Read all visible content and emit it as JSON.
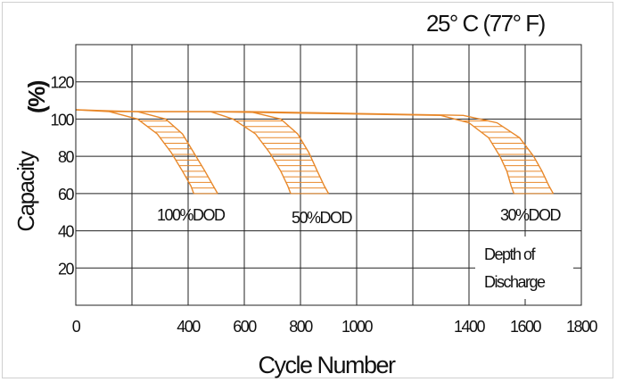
{
  "chart_data": {
    "type": "line",
    "title": "25° C (77° F)",
    "xlabel": "Cycle Number",
    "ylabel_left": "Capacity",
    "ylabel_right": "(%)",
    "xlim": [
      0,
      1800
    ],
    "ylim": [
      0,
      140
    ],
    "x_ticks": [
      0,
      200,
      400,
      600,
      800,
      1000,
      1200,
      1400,
      1600,
      1800
    ],
    "x_tick_labels": [
      "0",
      "400",
      "600",
      "800",
      "1000",
      "1400",
      "1600",
      "1800"
    ],
    "x_tick_label_values": [
      0,
      400,
      600,
      800,
      1000,
      1400,
      1600,
      1800
    ],
    "y_ticks": [
      20,
      40,
      60,
      80,
      100,
      120
    ],
    "y_tick_labels": [
      "20",
      "40",
      "60",
      "80",
      "100",
      "120"
    ],
    "grid": true,
    "series_color": "#e8882a",
    "series": [
      {
        "name": "100%DOD",
        "upper": [
          [
            0,
            105
          ],
          [
            220,
            104
          ],
          [
            320,
            100
          ],
          [
            380,
            92
          ],
          [
            420,
            82
          ],
          [
            460,
            72
          ],
          [
            490,
            64
          ],
          [
            505,
            60
          ]
        ],
        "lower": [
          [
            0,
            105
          ],
          [
            120,
            104
          ],
          [
            220,
            100
          ],
          [
            290,
            92
          ],
          [
            340,
            82
          ],
          [
            380,
            72
          ],
          [
            410,
            64
          ],
          [
            420,
            60
          ]
        ]
      },
      {
        "name": "50%DOD",
        "upper": [
          [
            220,
            104
          ],
          [
            620,
            104
          ],
          [
            730,
            100
          ],
          [
            790,
            92
          ],
          [
            830,
            82
          ],
          [
            860,
            72
          ],
          [
            885,
            64
          ],
          [
            900,
            60
          ]
        ],
        "lower": [
          [
            120,
            104
          ],
          [
            480,
            104
          ],
          [
            560,
            100
          ],
          [
            640,
            92
          ],
          [
            690,
            82
          ],
          [
            730,
            72
          ],
          [
            755,
            64
          ],
          [
            765,
            60
          ]
        ]
      },
      {
        "name": "30%DOD",
        "upper": [
          [
            620,
            104
          ],
          [
            1380,
            102
          ],
          [
            1500,
            98
          ],
          [
            1580,
            90
          ],
          [
            1630,
            80
          ],
          [
            1660,
            72
          ],
          [
            1685,
            64
          ],
          [
            1700,
            60
          ]
        ],
        "lower": [
          [
            480,
            104
          ],
          [
            1300,
            102
          ],
          [
            1400,
            98
          ],
          [
            1470,
            90
          ],
          [
            1510,
            80
          ],
          [
            1535,
            72
          ],
          [
            1550,
            64
          ],
          [
            1560,
            60
          ]
        ]
      }
    ],
    "annotations": {
      "dod_100": "100%DOD",
      "dod_50": "50%DOD",
      "dod_30": "30%DOD",
      "legend_line1": "Depth of",
      "legend_line2": "Discharge"
    }
  }
}
